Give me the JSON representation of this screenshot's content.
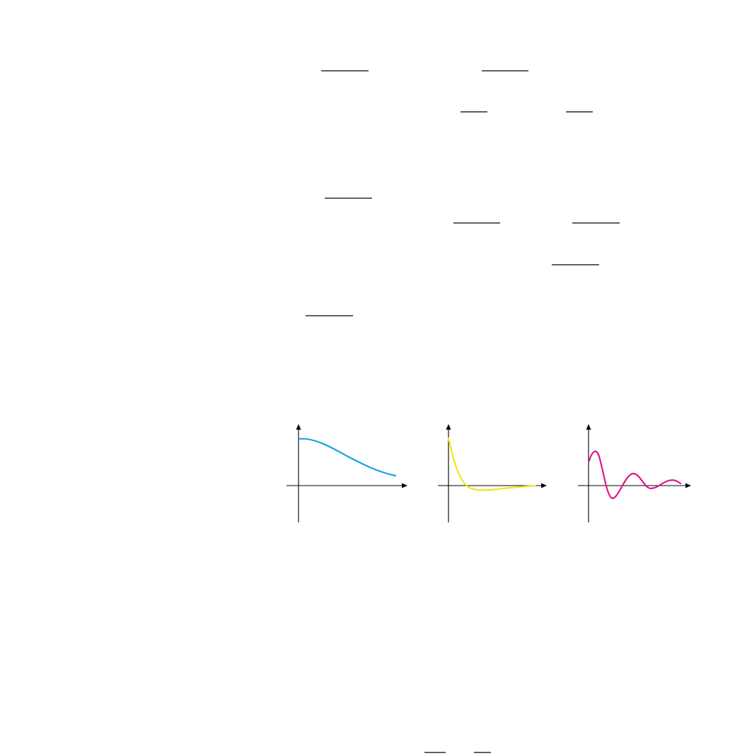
{
  "figure": {
    "panels": [
      {
        "id": "overdamped",
        "curve_color": "#1aa3e0"
      },
      {
        "id": "critically-damped",
        "curve_color": "#f2e51a"
      },
      {
        "id": "underdamped",
        "curve_color": "#e0148c"
      }
    ]
  }
}
